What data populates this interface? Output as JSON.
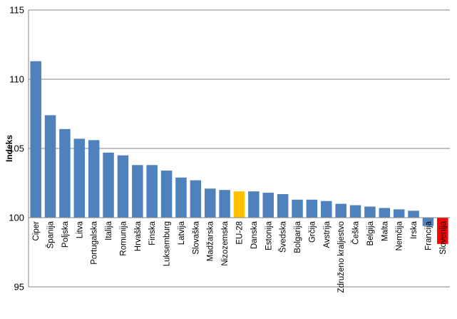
{
  "chart_data": {
    "type": "bar",
    "title": "",
    "xlabel": "",
    "ylabel": "Indeks",
    "ylim": [
      95,
      115
    ],
    "yticks": [
      95,
      100,
      105,
      110,
      115
    ],
    "grid": true,
    "legend": "none",
    "baseline": 100,
    "colors": {
      "default": "#4f81bd",
      "highlight": "#ffc000",
      "emphasis": "#ff0000",
      "grid": "#868686",
      "axis": "#868686"
    },
    "categories": [
      "Ciper",
      "Španija",
      "Poljska",
      "Litva",
      "Portugalska",
      "Italija",
      "Romunija",
      "Hrvaška",
      "Finska",
      "Luksemburg",
      "Latvija",
      "Slovaška",
      "Madžarska",
      "Nizozemska",
      "EU-28",
      "Danska",
      "Estonija",
      "Švedska",
      "Bolgarija",
      "Grčija",
      "Avstrija",
      "Združeno kraljestvo",
      "Češka",
      "Belgija",
      "Malta",
      "Nemčija",
      "Irska",
      "Francija",
      "Slovenija"
    ],
    "values": [
      111.3,
      107.4,
      106.4,
      105.7,
      105.6,
      104.7,
      104.5,
      103.8,
      103.8,
      103.4,
      102.9,
      102.7,
      102.1,
      102.0,
      101.9,
      101.9,
      101.8,
      101.7,
      101.3,
      101.3,
      101.2,
      101.0,
      100.9,
      100.8,
      100.7,
      100.6,
      100.5,
      99.4,
      98.1
    ],
    "bar_colors": [
      "#4f81bd",
      "#4f81bd",
      "#4f81bd",
      "#4f81bd",
      "#4f81bd",
      "#4f81bd",
      "#4f81bd",
      "#4f81bd",
      "#4f81bd",
      "#4f81bd",
      "#4f81bd",
      "#4f81bd",
      "#4f81bd",
      "#4f81bd",
      "#ffc000",
      "#4f81bd",
      "#4f81bd",
      "#4f81bd",
      "#4f81bd",
      "#4f81bd",
      "#4f81bd",
      "#4f81bd",
      "#4f81bd",
      "#4f81bd",
      "#4f81bd",
      "#4f81bd",
      "#4f81bd",
      "#4f81bd",
      "#ff0000"
    ]
  }
}
